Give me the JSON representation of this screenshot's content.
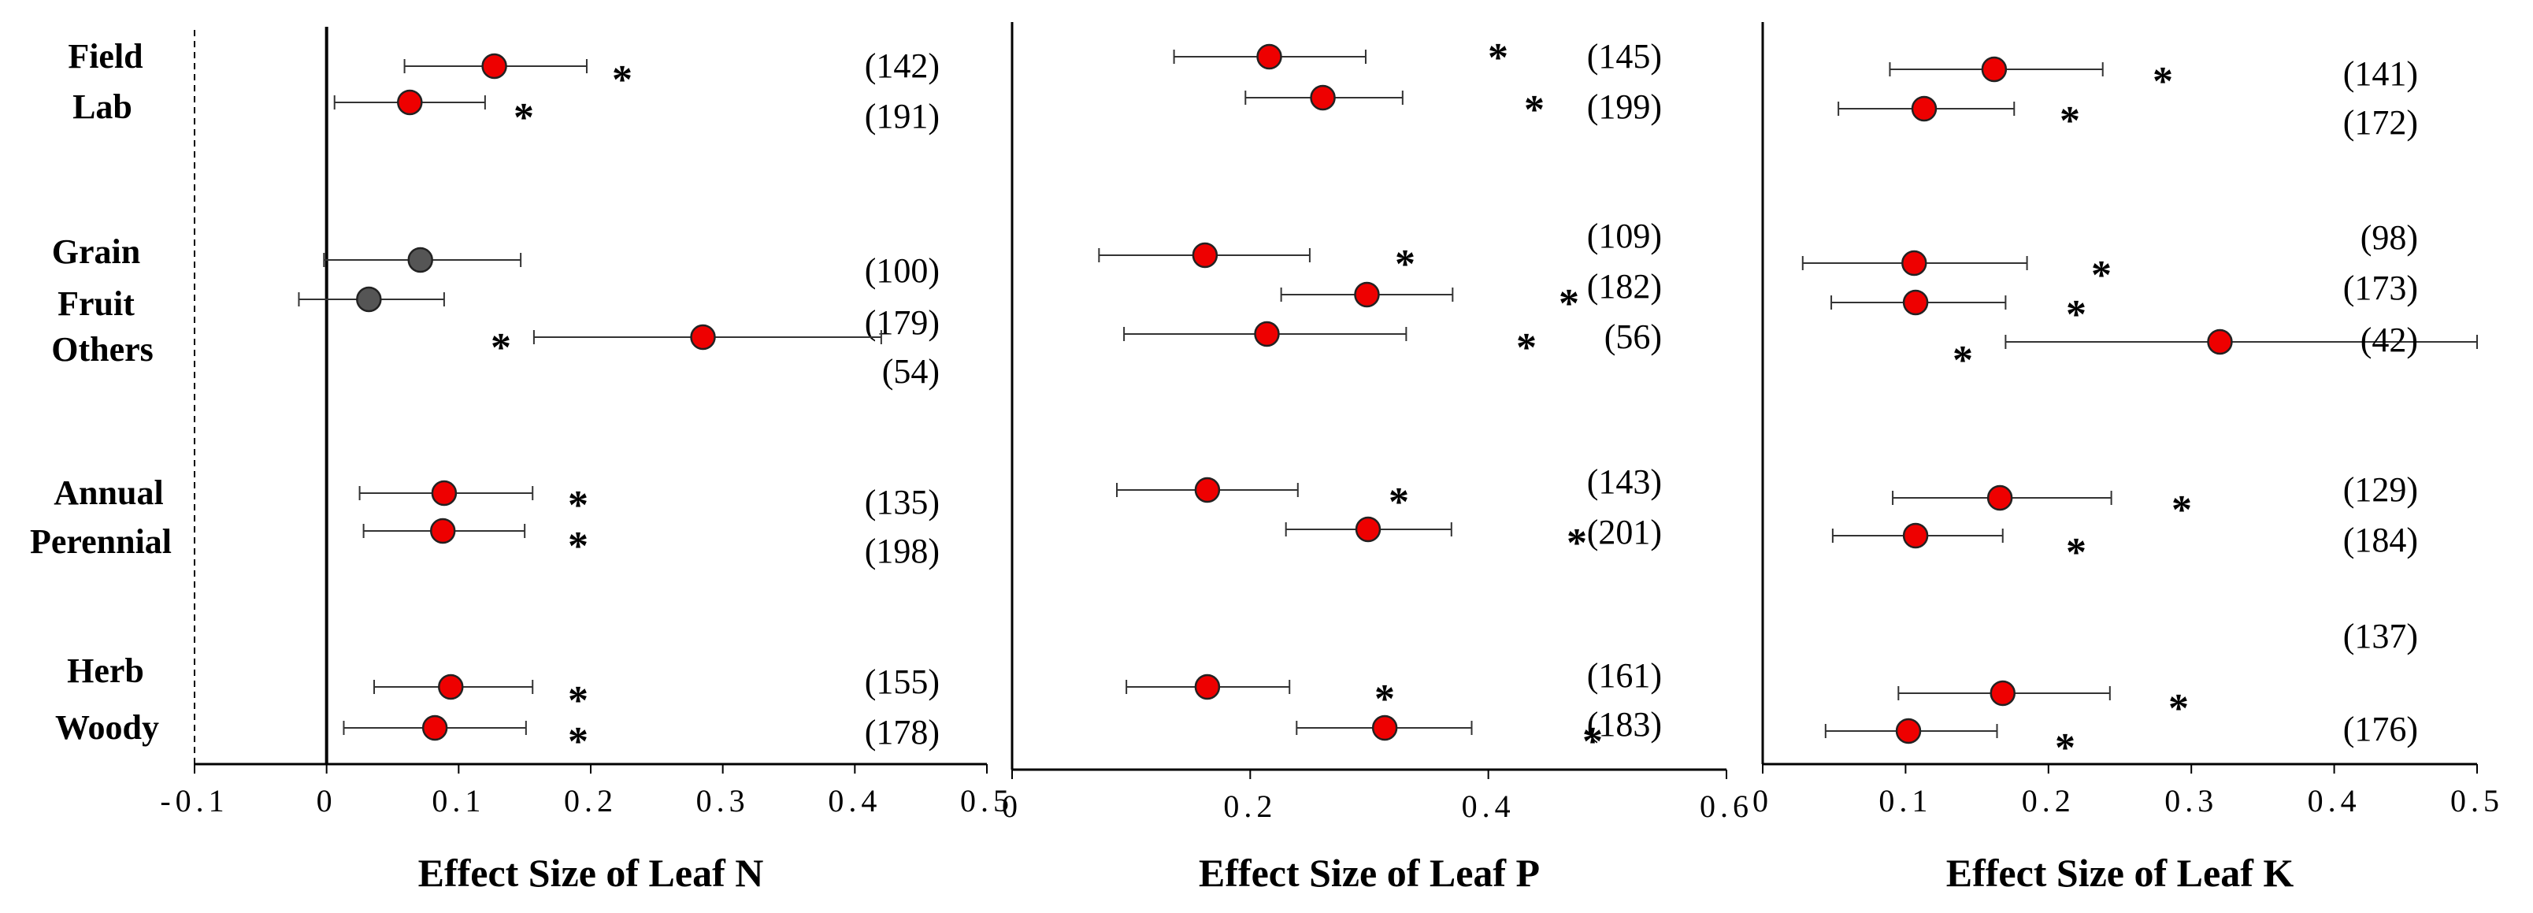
{
  "categories": [
    "Field",
    "Lab",
    "Grain",
    "Fruit",
    "Others",
    "Annual",
    "Perennial",
    "Herb",
    "Woody"
  ],
  "colors": {
    "significant": "#ee0000",
    "nonsignificant": "#555555",
    "axis": "#000000"
  },
  "chart_data": [
    {
      "type": "scatter",
      "xlabel": "Effect Size of Leaf N",
      "xlim": [
        -0.1,
        0.5
      ],
      "xticks": [
        -0.1,
        0,
        0.1,
        0.2,
        0.3,
        0.4,
        0.5
      ],
      "xtick_labels": [
        "-0.1",
        "0",
        "0.1",
        "0.2",
        "0.3",
        "0.4",
        "0.5"
      ],
      "points": [
        {
          "category": "Field",
          "mean": 0.127,
          "ci_low": 0.059,
          "ci_high": 0.197,
          "significant": true,
          "n_label": "(142)"
        },
        {
          "category": "Lab",
          "mean": 0.063,
          "ci_low": 0.006,
          "ci_high": 0.12,
          "significant": true,
          "n_label": "(191)"
        },
        {
          "category": "Grain",
          "mean": 0.071,
          "ci_low": -0.002,
          "ci_high": 0.147,
          "significant": false,
          "n_label": "(100)"
        },
        {
          "category": "Fruit",
          "mean": 0.032,
          "ci_low": -0.021,
          "ci_high": 0.089,
          "significant": false,
          "n_label": "(179)"
        },
        {
          "category": "Others",
          "mean": 0.285,
          "ci_low": 0.157,
          "ci_high": 0.42,
          "significant": true,
          "n_label": "(54)"
        },
        {
          "category": "Annual",
          "mean": 0.089,
          "ci_low": 0.025,
          "ci_high": 0.156,
          "significant": true,
          "n_label": "(135)"
        },
        {
          "category": "Perennial",
          "mean": 0.088,
          "ci_low": 0.028,
          "ci_high": 0.15,
          "significant": true,
          "n_label": "(198)"
        },
        {
          "category": "Herb",
          "mean": 0.094,
          "ci_low": 0.036,
          "ci_high": 0.156,
          "significant": true,
          "n_label": "(155)"
        },
        {
          "category": "Woody",
          "mean": 0.082,
          "ci_low": 0.013,
          "ci_high": 0.151,
          "significant": true,
          "n_label": "(178)"
        }
      ]
    },
    {
      "type": "scatter",
      "xlabel": "Effect Size of Leaf P",
      "xlim": [
        0,
        0.6
      ],
      "xticks": [
        0,
        0.2,
        0.4,
        0.6
      ],
      "xtick_labels": [
        "0",
        "0.2",
        "0.4",
        "0.6"
      ],
      "points": [
        {
          "category": "Field",
          "mean": 0.216,
          "ci_low": 0.136,
          "ci_high": 0.297,
          "significant": true,
          "n_label": "(145)"
        },
        {
          "category": "Lab",
          "mean": 0.261,
          "ci_low": 0.196,
          "ci_high": 0.328,
          "significant": true,
          "n_label": "(199)"
        },
        {
          "category": "Grain",
          "mean": 0.162,
          "ci_low": 0.073,
          "ci_high": 0.25,
          "significant": true,
          "n_label": "(109)"
        },
        {
          "category": "Fruit",
          "mean": 0.298,
          "ci_low": 0.226,
          "ci_high": 0.37,
          "significant": true,
          "n_label": "(182)"
        },
        {
          "category": "Others",
          "mean": 0.214,
          "ci_low": 0.094,
          "ci_high": 0.331,
          "significant": true,
          "n_label": "(56)"
        },
        {
          "category": "Annual",
          "mean": 0.164,
          "ci_low": 0.088,
          "ci_high": 0.24,
          "significant": true,
          "n_label": "(143)"
        },
        {
          "category": "Perennial",
          "mean": 0.299,
          "ci_low": 0.23,
          "ci_high": 0.369,
          "significant": true,
          "n_label": "(201)"
        },
        {
          "category": "Herb",
          "mean": 0.164,
          "ci_low": 0.096,
          "ci_high": 0.233,
          "significant": true,
          "n_label": "(161)"
        },
        {
          "category": "Woody",
          "mean": 0.313,
          "ci_low": 0.239,
          "ci_high": 0.386,
          "significant": true,
          "n_label": "(183)"
        }
      ]
    },
    {
      "type": "scatter",
      "xlabel": "Effect Size of Leaf K",
      "xlim": [
        0,
        0.5
      ],
      "xticks": [
        0,
        0.1,
        0.2,
        0.3,
        0.4,
        0.5
      ],
      "xtick_labels": [
        "0",
        "0.1",
        "0.2",
        "0.3",
        "0.4",
        "0.5"
      ],
      "points": [
        {
          "category": "Field",
          "mean": 0.162,
          "ci_low": 0.089,
          "ci_high": 0.238,
          "significant": true,
          "n_label": "(141)"
        },
        {
          "category": "Lab",
          "mean": 0.113,
          "ci_low": 0.053,
          "ci_high": 0.176,
          "significant": true,
          "n_label": "(172)"
        },
        {
          "category": "Grain",
          "mean": 0.106,
          "ci_low": 0.028,
          "ci_high": 0.185,
          "significant": true,
          "n_label": "(98)"
        },
        {
          "category": "Fruit",
          "mean": 0.107,
          "ci_low": 0.048,
          "ci_high": 0.17,
          "significant": true,
          "n_label": "(173)"
        },
        {
          "category": "Others",
          "mean": 0.32,
          "ci_low": 0.17,
          "ci_high": 0.5,
          "significant": true,
          "n_label": "(42)"
        },
        {
          "category": "Annual",
          "mean": 0.166,
          "ci_low": 0.091,
          "ci_high": 0.244,
          "significant": true,
          "n_label": "(129)"
        },
        {
          "category": "Perennial",
          "mean": 0.107,
          "ci_low": 0.049,
          "ci_high": 0.168,
          "significant": true,
          "n_label": "(184)"
        },
        {
          "category": "Herb",
          "mean": 0.168,
          "ci_low": 0.095,
          "ci_high": 0.243,
          "significant": true,
          "n_label": "(137)"
        },
        {
          "category": "Woody",
          "mean": 0.102,
          "ci_low": 0.044,
          "ci_high": 0.164,
          "significant": true,
          "n_label": "(176)"
        }
      ]
    }
  ]
}
